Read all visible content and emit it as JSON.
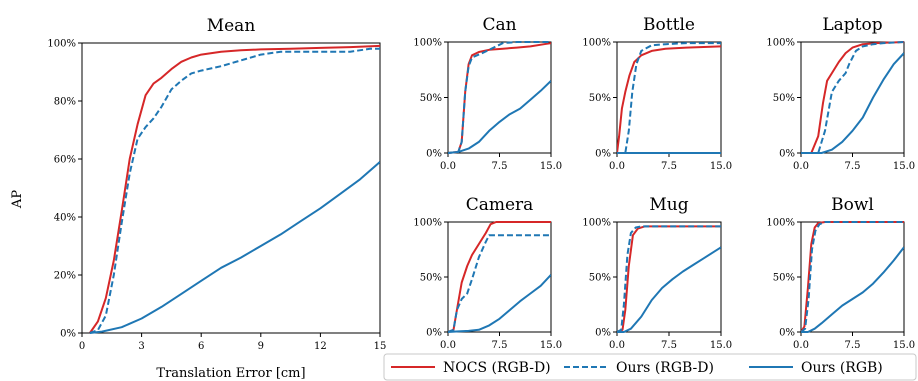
{
  "figure": {
    "ylabel": "AP",
    "legend": {
      "position": "bottom-right",
      "entries": [
        {
          "label": "NOCS (RGB-D)",
          "color": "#d62728",
          "dash": "solid"
        },
        {
          "label": "Ours (RGB-D)",
          "color": "#1f77b4",
          "dash": "dashed"
        },
        {
          "label": "Ours (RGB)",
          "color": "#1f77b4",
          "dash": "solid"
        }
      ]
    }
  },
  "chart_data": [
    {
      "type": "line",
      "title": "Mean",
      "xlabel": "Translation Error [cm]",
      "ylabel": "AP",
      "xlim": [
        0,
        15
      ],
      "ylim": [
        0,
        100
      ],
      "xticks": [
        "0",
        "3",
        "6",
        "9",
        "12",
        "15"
      ],
      "yticks": [
        "0%",
        "20%",
        "40%",
        "60%",
        "80%",
        "100%"
      ],
      "series": [
        {
          "name": "NOCS (RGB-D)",
          "x": [
            0.4,
            0.8,
            1.2,
            1.6,
            2.0,
            2.4,
            2.8,
            3.2,
            3.6,
            4.0,
            4.5,
            5.0,
            5.5,
            6.0,
            7.0,
            8.0,
            9.0,
            10.5,
            12.0,
            13.5,
            15.0
          ],
          "y": [
            0,
            4,
            12,
            25,
            42,
            60,
            72,
            82,
            86,
            88,
            91,
            93.5,
            95,
            96,
            97,
            97.5,
            97.8,
            98,
            98.3,
            98.6,
            99
          ]
        },
        {
          "name": "Ours (RGB-D)",
          "x": [
            0.4,
            0.8,
            1.2,
            1.6,
            2.0,
            2.4,
            2.8,
            3.2,
            3.6,
            4.0,
            4.5,
            5.0,
            5.5,
            6.0,
            7.0,
            8.0,
            9.0,
            10.0,
            11.0,
            12.0,
            13.5,
            14.5,
            15.0
          ],
          "y": [
            0,
            1,
            6,
            20,
            38,
            55,
            67,
            71,
            74,
            78,
            84,
            87,
            89.5,
            90.5,
            92,
            94,
            96,
            97,
            97,
            97,
            97,
            98,
            98
          ]
        },
        {
          "name": "Ours (RGB)",
          "x": [
            0.4,
            1.0,
            2.0,
            3.0,
            4.0,
            5.0,
            6.0,
            7.0,
            8.0,
            9.0,
            10.0,
            11.0,
            12.0,
            13.0,
            14.0,
            15.0
          ],
          "y": [
            0,
            0.5,
            2,
            5,
            9,
            13.5,
            18,
            22.5,
            26,
            30,
            34,
            38.5,
            43,
            48,
            53,
            59
          ]
        }
      ]
    },
    {
      "type": "line",
      "title": "Can",
      "xlim": [
        0,
        15
      ],
      "ylim": [
        0,
        100
      ],
      "xticks": [
        "0.0",
        "7.5",
        "15.0"
      ],
      "yticks": [
        "0%",
        "50%",
        "100%"
      ],
      "series": [
        {
          "name": "NOCS (RGB-D)",
          "x": [
            0,
            1.5,
            2.0,
            2.5,
            3.0,
            3.5,
            4.5,
            6.0,
            8.0,
            10.0,
            12.0,
            14.0,
            15.0
          ],
          "y": [
            0,
            1,
            10,
            55,
            80,
            88,
            91,
            93,
            94,
            95,
            96,
            98,
            99
          ]
        },
        {
          "name": "Ours (RGB-D)",
          "x": [
            0,
            1.5,
            2.0,
            2.5,
            3.0,
            3.5,
            5.0,
            6.0,
            7.0,
            8.0,
            10.0,
            15.0
          ],
          "y": [
            0,
            1,
            10,
            55,
            78,
            86,
            90,
            93,
            96,
            99,
            100,
            100
          ]
        },
        {
          "name": "Ours (RGB)",
          "x": [
            0,
            1.5,
            3.0,
            4.5,
            6.0,
            7.5,
            9.0,
            10.5,
            12.0,
            13.5,
            15.0
          ],
          "y": [
            0,
            1,
            4,
            10,
            20,
            28,
            35,
            40,
            48,
            56,
            65
          ]
        }
      ]
    },
    {
      "type": "line",
      "title": "Bottle",
      "xlim": [
        0,
        15
      ],
      "ylim": [
        0,
        100
      ],
      "xticks": [
        "0.0",
        "7.5",
        "15.0"
      ],
      "yticks": [
        "0%",
        "50%",
        "100%"
      ],
      "series": [
        {
          "name": "NOCS (RGB-D)",
          "x": [
            0,
            0.3,
            0.7,
            1.2,
            1.8,
            2.5,
            3.5,
            5.0,
            7.0,
            10.0,
            15.0
          ],
          "y": [
            0,
            15,
            40,
            55,
            70,
            82,
            88,
            92,
            94,
            95,
            96
          ]
        },
        {
          "name": "Ours (RGB-D)",
          "x": [
            0,
            1.2,
            1.7,
            2.2,
            2.8,
            3.5,
            5.0,
            7.0,
            10.0,
            15.0
          ],
          "y": [
            0,
            0,
            20,
            55,
            80,
            92,
            97,
            98,
            99,
            99
          ]
        },
        {
          "name": "Ours (RGB)",
          "x": [
            0,
            15.0
          ],
          "y": [
            0,
            0
          ]
        }
      ]
    },
    {
      "type": "line",
      "title": "Laptop",
      "xlim": [
        0,
        15
      ],
      "ylim": [
        0,
        100
      ],
      "xticks": [
        "0.0",
        "7.5",
        "15.0"
      ],
      "yticks": [
        "0%",
        "50%",
        "100%"
      ],
      "series": [
        {
          "name": "NOCS (RGB-D)",
          "x": [
            0,
            1.5,
            2.5,
            3.2,
            3.8,
            4.5,
            5.5,
            6.5,
            7.5,
            9.0,
            11.0,
            15.0
          ],
          "y": [
            0,
            0,
            15,
            45,
            65,
            72,
            82,
            90,
            95,
            98,
            99,
            100
          ]
        },
        {
          "name": "Ours (RGB-D)",
          "x": [
            0,
            2.5,
            3.5,
            4.5,
            5.5,
            6.5,
            7.0,
            8.0,
            9.0,
            10.5,
            12.0,
            15.0
          ],
          "y": [
            0,
            0,
            20,
            55,
            65,
            72,
            80,
            92,
            96,
            98,
            99,
            100
          ]
        },
        {
          "name": "Ours (RGB)",
          "x": [
            0,
            3.0,
            4.5,
            6.0,
            7.5,
            9.0,
            10.5,
            12.0,
            13.5,
            15.0
          ],
          "y": [
            0,
            0,
            3,
            10,
            20,
            32,
            50,
            66,
            80,
            90
          ]
        }
      ]
    },
    {
      "type": "line",
      "title": "Camera",
      "xlim": [
        0,
        15
      ],
      "ylim": [
        0,
        100
      ],
      "xticks": [
        "0.0",
        "7.5",
        "15.0"
      ],
      "yticks": [
        "0%",
        "50%",
        "100%"
      ],
      "series": [
        {
          "name": "NOCS (RGB-D)",
          "x": [
            0,
            0.8,
            1.3,
            2.0,
            2.8,
            3.5,
            4.5,
            5.5,
            6.2,
            7.0,
            15.0
          ],
          "y": [
            0,
            2,
            20,
            45,
            60,
            70,
            80,
            90,
            98,
            100,
            100
          ]
        },
        {
          "name": "Ours (RGB-D)",
          "x": [
            0,
            0.8,
            1.3,
            2.0,
            2.8,
            3.5,
            4.5,
            5.5,
            6.0,
            7.0,
            15.0
          ],
          "y": [
            0,
            2,
            20,
            30,
            35,
            48,
            68,
            82,
            88,
            88,
            88
          ]
        },
        {
          "name": "Ours (RGB)",
          "x": [
            0,
            1.5,
            3.0,
            4.5,
            6.0,
            7.5,
            9.0,
            10.5,
            12.0,
            13.5,
            15.0
          ],
          "y": [
            0,
            0.5,
            1,
            2,
            6,
            12,
            20,
            28,
            35,
            42,
            52
          ]
        }
      ]
    },
    {
      "type": "line",
      "title": "Mug",
      "xlim": [
        0,
        15
      ],
      "ylim": [
        0,
        100
      ],
      "xticks": [
        "0.0",
        "7.5",
        "15.0"
      ],
      "yticks": [
        "0%",
        "50%",
        "100%"
      ],
      "series": [
        {
          "name": "NOCS (RGB-D)",
          "x": [
            0,
            0.8,
            1.2,
            1.7,
            2.3,
            3.0,
            4.0,
            6.0,
            10.0,
            15.0
          ],
          "y": [
            0,
            2,
            20,
            60,
            88,
            94,
            96,
            96,
            96,
            96
          ]
        },
        {
          "name": "Ours (RGB-D)",
          "x": [
            0,
            0.6,
            1.0,
            1.5,
            2.0,
            2.7,
            3.5,
            5.0,
            10.0,
            15.0
          ],
          "y": [
            0,
            2,
            25,
            70,
            90,
            95,
            96,
            96,
            96,
            96
          ]
        },
        {
          "name": "Ours (RGB)",
          "x": [
            0,
            1.0,
            2.0,
            3.5,
            5.0,
            6.5,
            8.0,
            9.5,
            11.0,
            12.5,
            14.0,
            15.0
          ],
          "y": [
            0,
            0,
            3,
            14,
            29,
            40,
            48,
            55,
            61,
            67,
            73,
            77
          ]
        }
      ]
    },
    {
      "type": "line",
      "title": "Bowl",
      "xlim": [
        0,
        15
      ],
      "ylim": [
        0,
        100
      ],
      "xticks": [
        "0.0",
        "7.5",
        "15.0"
      ],
      "yticks": [
        "0%",
        "50%",
        "100%"
      ],
      "series": [
        {
          "name": "NOCS (RGB-D)",
          "x": [
            0,
            0.5,
            1.0,
            1.5,
            2.0,
            2.5,
            3.5,
            15.0
          ],
          "y": [
            0,
            5,
            40,
            80,
            95,
            99,
            100,
            100
          ]
        },
        {
          "name": "Ours (RGB-D)",
          "x": [
            0,
            0.6,
            1.1,
            1.6,
            2.1,
            2.7,
            3.5,
            15.0
          ],
          "y": [
            0,
            3,
            30,
            75,
            92,
            98,
            100,
            100
          ]
        },
        {
          "name": "Ours (RGB)",
          "x": [
            0,
            1.0,
            2.0,
            3.0,
            4.5,
            6.0,
            7.5,
            9.0,
            10.5,
            12.0,
            13.5,
            15.0
          ],
          "y": [
            0,
            0,
            3,
            8,
            16,
            24,
            30,
            36,
            44,
            54,
            65,
            77
          ]
        }
      ]
    }
  ]
}
